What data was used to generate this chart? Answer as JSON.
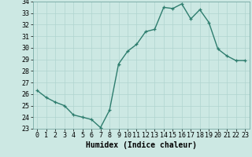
{
  "x": [
    0,
    1,
    2,
    3,
    4,
    5,
    6,
    7,
    8,
    9,
    10,
    11,
    12,
    13,
    14,
    15,
    16,
    17,
    18,
    19,
    20,
    21,
    22,
    23
  ],
  "y": [
    26.3,
    25.7,
    25.3,
    25.0,
    24.2,
    24.0,
    23.8,
    23.1,
    24.6,
    28.6,
    29.7,
    30.3,
    31.4,
    31.6,
    33.5,
    33.4,
    33.8,
    32.5,
    33.3,
    32.2,
    29.9,
    29.3,
    28.9,
    28.9
  ],
  "xlabel": "Humidex (Indice chaleur)",
  "ylim": [
    23,
    34
  ],
  "xlim": [
    -0.5,
    23.5
  ],
  "yticks": [
    23,
    24,
    25,
    26,
    27,
    28,
    29,
    30,
    31,
    32,
    33,
    34
  ],
  "xticks": [
    0,
    1,
    2,
    3,
    4,
    5,
    6,
    7,
    8,
    9,
    10,
    11,
    12,
    13,
    14,
    15,
    16,
    17,
    18,
    19,
    20,
    21,
    22,
    23
  ],
  "line_color": "#2e7d6e",
  "marker_color": "#2e7d6e",
  "bg_color": "#cce8e3",
  "grid_color": "#b0d4cf",
  "xlabel_fontsize": 7,
  "tick_fontsize": 6,
  "line_width": 1.0,
  "marker_size": 3.5
}
